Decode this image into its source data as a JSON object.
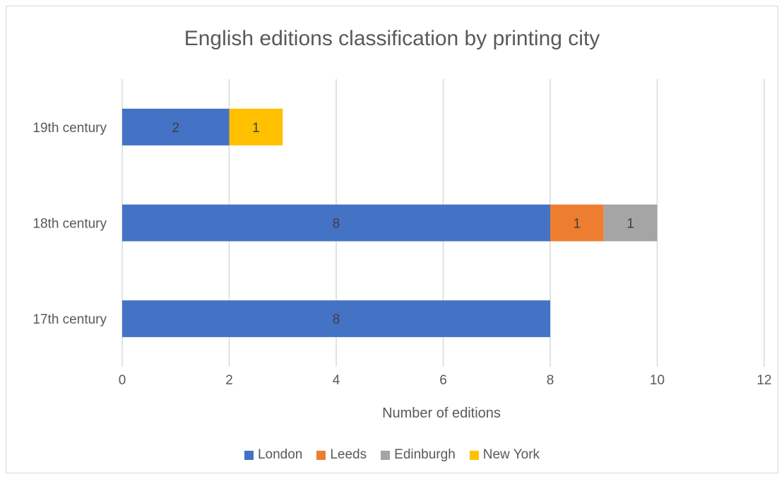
{
  "chart_data": {
    "type": "bar",
    "orientation": "horizontal",
    "stacked": true,
    "title": "English editions classification by printing city",
    "xlabel": "Number of editions",
    "ylabel": "",
    "categories": [
      "17th century",
      "18th century",
      "19th century"
    ],
    "series": [
      {
        "name": "London",
        "color": "#4472C4",
        "values": [
          8,
          8,
          2
        ]
      },
      {
        "name": "Leeds",
        "color": "#ED7D31",
        "values": [
          0,
          1,
          0
        ]
      },
      {
        "name": "Edinburgh",
        "color": "#A5A5A5",
        "values": [
          0,
          1,
          0
        ]
      },
      {
        "name": "New York",
        "color": "#FFC000",
        "values": [
          0,
          0,
          1
        ]
      }
    ],
    "xlim": [
      0,
      12
    ],
    "xticks": [
      0,
      2,
      4,
      6,
      8,
      10,
      12
    ],
    "grid": true,
    "data_labels": true,
    "legend_position": "bottom"
  }
}
